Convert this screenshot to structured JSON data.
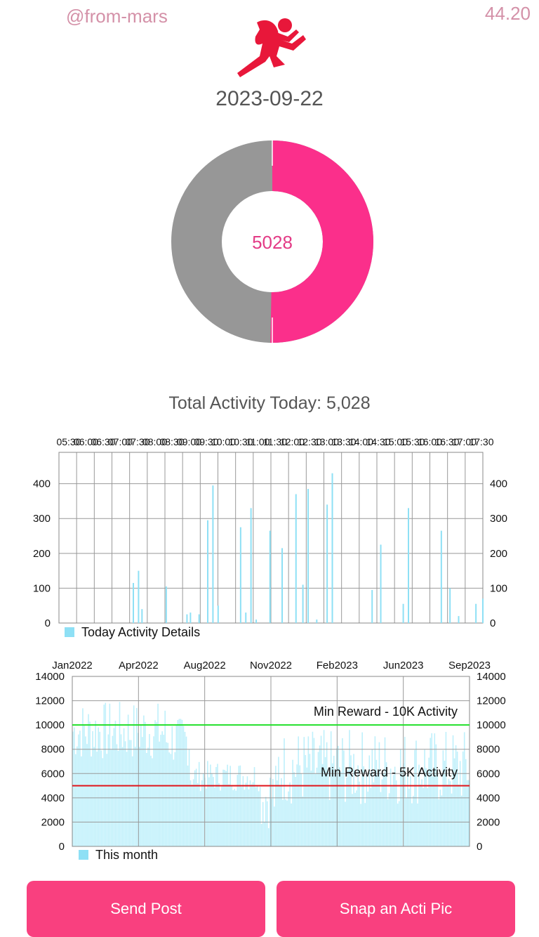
{
  "header": {
    "username": "@from-mars",
    "balance": "44.20"
  },
  "date": "2023-09-22",
  "donut": {
    "center_value": "5028",
    "progress": 0.5028,
    "fill_color": "#fb2f8b",
    "rest_color": "#979797"
  },
  "total_label": "Total Activity Today: 5,028",
  "chart_data": [
    {
      "type": "bar",
      "legend": "Today Activity Details",
      "series_color": "#8ee0f5",
      "x_tick_labels": [
        "05:30",
        "06:00",
        "06:30",
        "07:00",
        "07:30",
        "08:00",
        "08:30",
        "09:00",
        "09:30",
        "10:00",
        "10:30",
        "11:00",
        "11:30",
        "12:00",
        "12:30",
        "13:00",
        "13:30",
        "14:00",
        "14:30",
        "15:00",
        "15:30",
        "16:00",
        "16:30",
        "17:00",
        "17:30"
      ],
      "y_ticks": [
        0,
        100,
        200,
        300,
        400
      ],
      "ylim": [
        0,
        490
      ],
      "x_range_hours": [
        5.5,
        17.75
      ],
      "points": [
        [
          7.65,
          115
        ],
        [
          7.8,
          150
        ],
        [
          7.9,
          40
        ],
        [
          8.6,
          105
        ],
        [
          9.2,
          25
        ],
        [
          9.3,
          30
        ],
        [
          9.55,
          25
        ],
        [
          9.8,
          295
        ],
        [
          9.95,
          395
        ],
        [
          10.1,
          50
        ],
        [
          10.75,
          275
        ],
        [
          10.9,
          30
        ],
        [
          11.05,
          330
        ],
        [
          11.2,
          10
        ],
        [
          11.6,
          265
        ],
        [
          11.95,
          215
        ],
        [
          12.35,
          370
        ],
        [
          12.55,
          110
        ],
        [
          12.7,
          385
        ],
        [
          12.95,
          10
        ],
        [
          13.25,
          340
        ],
        [
          13.4,
          430
        ],
        [
          14.55,
          95
        ],
        [
          14.8,
          225
        ],
        [
          15.45,
          55
        ],
        [
          15.6,
          330
        ],
        [
          16.55,
          265
        ],
        [
          16.8,
          100
        ],
        [
          17.05,
          20
        ],
        [
          17.55,
          55
        ],
        [
          17.75,
          70
        ]
      ]
    },
    {
      "type": "bar",
      "legend": "This month",
      "series_color": "#bff0fb",
      "x_tick_labels": [
        "Jan2022",
        "Apr2022",
        "Aug2022",
        "Nov2022",
        "Feb2023",
        "Jun2023",
        "Sep2023"
      ],
      "y_ticks": [
        0,
        2000,
        4000,
        6000,
        8000,
        10000,
        12000,
        14000
      ],
      "ylim": [
        0,
        14000
      ],
      "reference_lines": [
        {
          "value": 10000,
          "label": "Min Reward - 10K Activity",
          "color": "#22e02a"
        },
        {
          "value": 5000,
          "label": "Min Reward - 5K Activity",
          "color": "#e0141b"
        }
      ],
      "segments": [
        {
          "months": "Jan2022–Mar2022",
          "typical": 9500,
          "min": 6500,
          "max": 12000
        },
        {
          "months": "Apr2022–May2022",
          "typical": 8800,
          "min": 5500,
          "max": 10500
        },
        {
          "months": "Jun2022–Sep2022",
          "typical": 5800,
          "min": 4500,
          "max": 7300
        },
        {
          "months": "Oct2022–Nov2022",
          "typical": 4200,
          "min": 1500,
          "max": 7800
        },
        {
          "months": "Dec2022–Sep2023",
          "typical": 6500,
          "min": 3500,
          "max": 10500
        }
      ]
    }
  ],
  "buttons": {
    "send": "Send Post",
    "snap": "Snap an Acti Pic"
  }
}
